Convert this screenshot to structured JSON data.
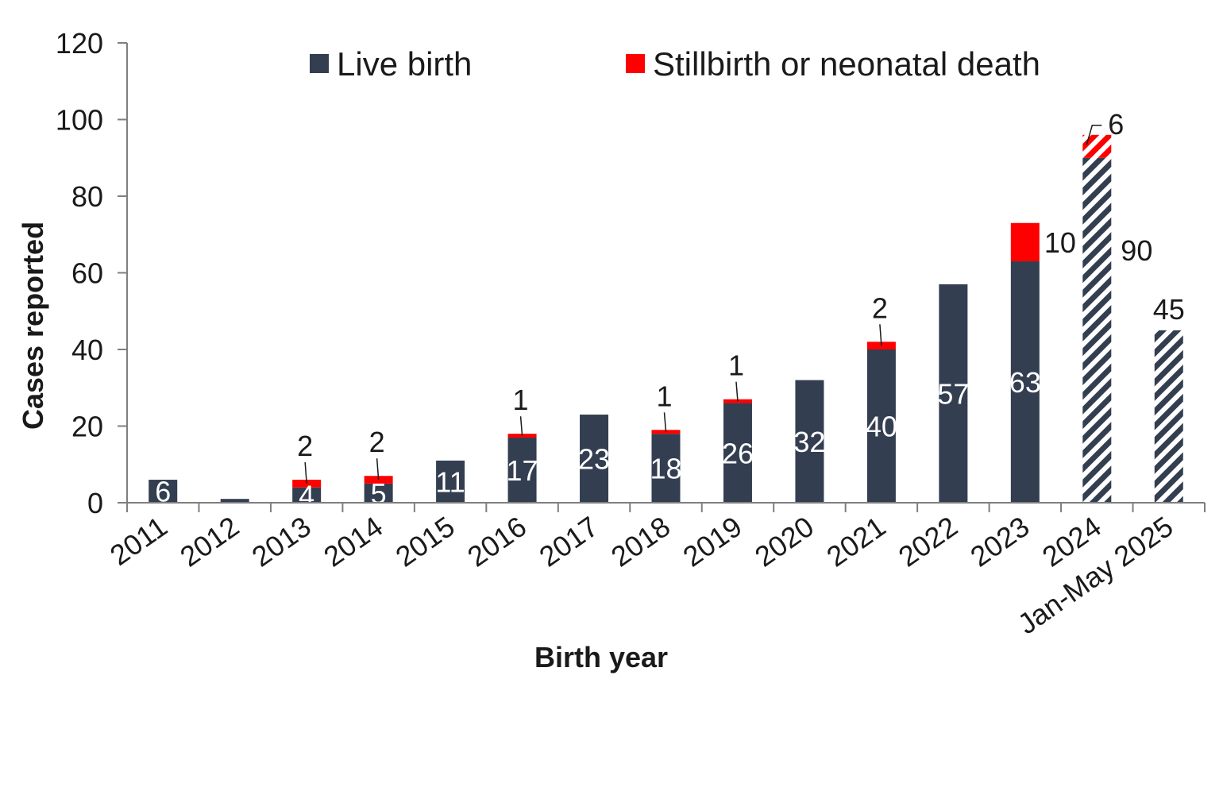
{
  "chart_data": {
    "type": "bar",
    "stacked": true,
    "title": "",
    "xlabel": "Birth year",
    "ylabel": "Cases reported",
    "ylim": [
      0,
      120
    ],
    "yticks": [
      0,
      20,
      40,
      60,
      80,
      100,
      120
    ],
    "categories": [
      "2011",
      "2012",
      "2013",
      "2014",
      "2015",
      "2016",
      "2017",
      "2018",
      "2019",
      "2020",
      "2021",
      "2022",
      "2023",
      "2024",
      "Jan-May 2025"
    ],
    "hatched_categories": [
      "2024",
      "Jan-May 2025"
    ],
    "series": [
      {
        "name": "Live birth",
        "color": "#333e50",
        "values": [
          6,
          1,
          4,
          5,
          11,
          17,
          23,
          18,
          26,
          32,
          40,
          57,
          63,
          90,
          45
        ],
        "labels": [
          "6",
          "",
          "4",
          "5",
          "11",
          "17",
          "23",
          "18",
          "26",
          "32",
          "40",
          "57",
          "63",
          "90",
          "45"
        ]
      },
      {
        "name": "Stillbirth or neonatal death",
        "color": "#ff0000",
        "values": [
          0,
          0,
          2,
          2,
          0,
          1,
          0,
          1,
          1,
          0,
          2,
          0,
          10,
          6,
          0
        ],
        "labels": [
          "",
          "",
          "2",
          "2",
          "",
          "1",
          "",
          "1",
          "1",
          "",
          "2",
          "",
          "10",
          "6",
          ""
        ]
      }
    ],
    "legend_position": "top"
  }
}
